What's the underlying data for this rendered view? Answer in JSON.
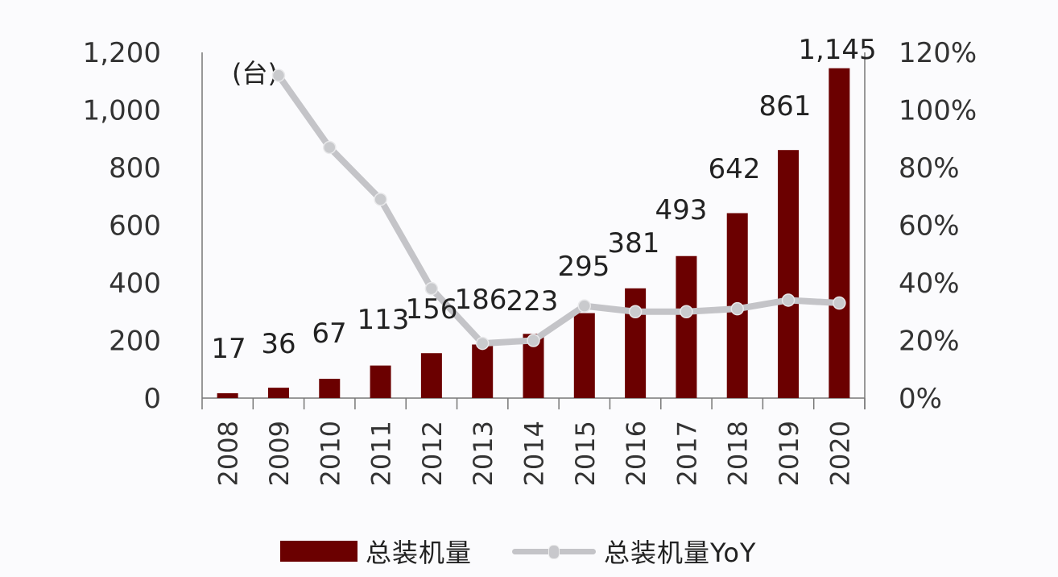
{
  "chart_data": {
    "type": "bar+line",
    "title": "",
    "unit_label": "(台)",
    "categories": [
      "2008",
      "2009",
      "2010",
      "2011",
      "2012",
      "2013",
      "2014",
      "2015",
      "2016",
      "2017",
      "2018",
      "2019",
      "2020"
    ],
    "series": [
      {
        "name": "总装机量",
        "type": "bar",
        "axis": "left",
        "color": "#6b0000",
        "values": [
          17,
          36,
          67,
          113,
          156,
          186,
          223,
          295,
          381,
          493,
          642,
          861,
          1145
        ],
        "labels": [
          "17",
          "36",
          "67",
          "113",
          "156",
          "186",
          "223",
          "295",
          "381",
          "493",
          "642",
          "861",
          "1,145"
        ]
      },
      {
        "name": "总装机量YoY",
        "type": "line",
        "axis": "right",
        "color": "#c4c4c8",
        "values": [
          null,
          112,
          87,
          69,
          38,
          19,
          20,
          32,
          30,
          30,
          31,
          34,
          33
        ]
      }
    ],
    "left_axis": {
      "ylim": [
        0,
        1200
      ],
      "ticks": [
        "0",
        "200",
        "400",
        "600",
        "800",
        "1,000",
        "1,200"
      ]
    },
    "right_axis": {
      "ylim": [
        0,
        120
      ],
      "ticks": [
        "0%",
        "20%",
        "40%",
        "60%",
        "80%",
        "100%",
        "120%"
      ]
    },
    "xlabel": "",
    "ylabel": "",
    "grid": false,
    "legend_position": "bottom"
  },
  "legend": {
    "bar_label": "总装机量",
    "line_label": "总装机量YoY"
  }
}
